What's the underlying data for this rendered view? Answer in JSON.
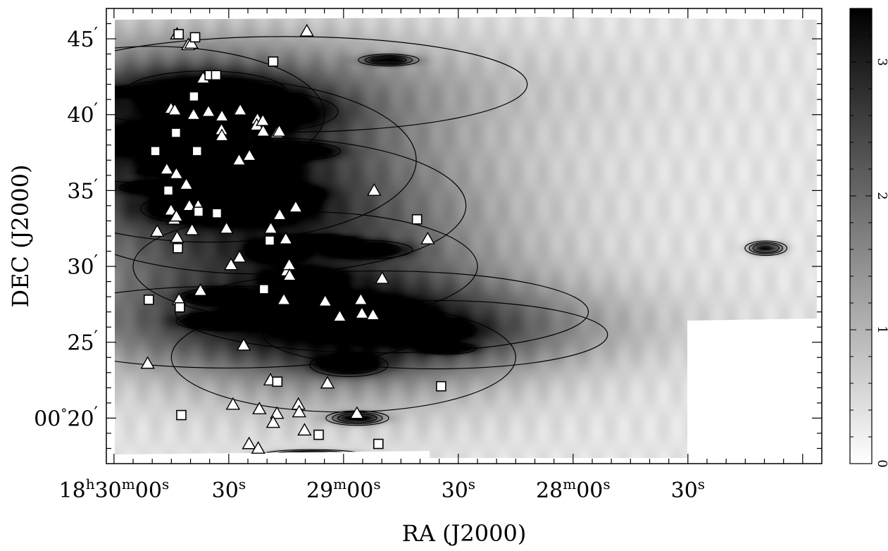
{
  "chart_data": {
    "type": "heatmap",
    "xlabel": "RA (J2000)",
    "ylabel": "DEC (J2000)",
    "x_ticks": [
      {
        "ra_sec": 1800,
        "label_main": "18",
        "sup1": "h",
        "mid": "30",
        "sup2": "m",
        "end": "00",
        "sup3": "s"
      },
      {
        "ra_sec": 1770,
        "label_main": "",
        "sup1": "",
        "mid": "",
        "sup2": "",
        "end": "30",
        "sup3": "s"
      },
      {
        "ra_sec": 1740,
        "label_main": "",
        "sup1": "",
        "mid": "29",
        "sup2": "m",
        "end": "00",
        "sup3": "s"
      },
      {
        "ra_sec": 1710,
        "label_main": "",
        "sup1": "",
        "mid": "",
        "sup2": "",
        "end": "30",
        "sup3": "s"
      },
      {
        "ra_sec": 1680,
        "label_main": "",
        "sup1": "",
        "mid": "28",
        "sup2": "m",
        "end": "00",
        "sup3": "s"
      },
      {
        "ra_sec": 1650,
        "label_main": "",
        "sup1": "",
        "mid": "",
        "sup2": "",
        "end": "30",
        "sup3": "s"
      }
    ],
    "y_ticks": [
      {
        "dec_arcmin": 45,
        "label": "45",
        "prime": "′"
      },
      {
        "dec_arcmin": 40,
        "label": "40",
        "prime": "′"
      },
      {
        "dec_arcmin": 35,
        "label": "35",
        "prime": "′"
      },
      {
        "dec_arcmin": 30,
        "label": "30",
        "prime": "′"
      },
      {
        "dec_arcmin": 25,
        "label": "25",
        "prime": "′"
      },
      {
        "dec_arcmin": 20,
        "label": "00°20",
        "prime": "′"
      }
    ],
    "xlim_ra_sec": [
      1802,
      1615
    ],
    "ylim_dec_arcmin": [
      17,
      47
    ],
    "colorbar": {
      "min": 0,
      "max": 3.4,
      "ticks": [
        "0",
        "1",
        "2",
        "3"
      ],
      "colors": [
        "#ffffff",
        "#000000"
      ]
    },
    "clumps": [
      {
        "ra": 1797.0,
        "dec": 41.5,
        "v": 3.1,
        "sx": 0.012,
        "sy": 0.25
      },
      {
        "ra": 1790.6,
        "dec": 38.3,
        "v": 1.9,
        "sx": 0.014,
        "sy": 0.9
      },
      {
        "ra": 1785.7,
        "dec": 35.2,
        "v": 2.6,
        "sx": 0.01,
        "sy": 0.4
      },
      {
        "ra": 1781.5,
        "dec": 36.2,
        "v": 3.4,
        "sx": 0.008,
        "sy": 0.2
      },
      {
        "ra": 1778.6,
        "dec": 36.7,
        "v": 2.9,
        "sx": 0.01,
        "sy": 0.35
      },
      {
        "ra": 1777.1,
        "dec": 33.8,
        "v": 1.8,
        "sx": 0.014,
        "sy": 0.9
      },
      {
        "ra": 1771.8,
        "dec": 28.0,
        "v": 3.0,
        "sx": 0.008,
        "sy": 0.45
      },
      {
        "ra": 1773.2,
        "dec": 26.4,
        "v": 2.8,
        "sx": 0.008,
        "sy": 0.45
      },
      {
        "ra": 1766.5,
        "dec": 36.3,
        "v": 2.0,
        "sx": 0.012,
        "sy": 1.0
      },
      {
        "ra": 1761.6,
        "dec": 34.0,
        "v": 2.1,
        "sx": 0.012,
        "sy": 1.0
      },
      {
        "ra": 1757.4,
        "dec": 31.0,
        "v": 3.2,
        "sx": 0.006,
        "sy": 0.6
      },
      {
        "ra": 1754.8,
        "dec": 34.8,
        "v": 2.4,
        "sx": 0.008,
        "sy": 0.5
      },
      {
        "ra": 1753.2,
        "dec": 37.6,
        "v": 2.3,
        "sx": 0.01,
        "sy": 0.5
      },
      {
        "ra": 1750.4,
        "dec": 29.3,
        "v": 2.9,
        "sx": 0.008,
        "sy": 0.5
      },
      {
        "ra": 1747.1,
        "dec": 31.7,
        "v": 3.3,
        "sx": 0.008,
        "sy": 0.3
      },
      {
        "ra": 1744.4,
        "dec": 27.6,
        "v": 2.4,
        "sx": 0.01,
        "sy": 0.6
      },
      {
        "ra": 1741.4,
        "dec": 26.5,
        "v": 3.1,
        "sx": 0.006,
        "sy": 0.4
      },
      {
        "ra": 1738.6,
        "dec": 23.5,
        "v": 2.5,
        "sx": 0.008,
        "sy": 0.6
      },
      {
        "ra": 1736.4,
        "dec": 20.0,
        "v": 3.2,
        "sx": 0.006,
        "sy": 0.35
      },
      {
        "ra": 1734.4,
        "dec": 31.1,
        "v": 2.3,
        "sx": 0.01,
        "sy": 0.5
      },
      {
        "ra": 1731.8,
        "dec": 27.2,
        "v": 2.3,
        "sx": 0.01,
        "sy": 0.6
      },
      {
        "ra": 1726.4,
        "dec": 26.1,
        "v": 3.0,
        "sx": 0.007,
        "sy": 0.3
      },
      {
        "ra": 1719.5,
        "dec": 25.8,
        "v": 2.0,
        "sx": 0.012,
        "sy": 0.7
      },
      {
        "ra": 1713.2,
        "dec": 24.6,
        "v": 2.8,
        "sx": 0.006,
        "sy": 0.3
      },
      {
        "ra": 1728.2,
        "dec": 43.6,
        "v": 2.8,
        "sx": 0.006,
        "sy": 0.3
      },
      {
        "ra": 1748.2,
        "dec": 17.6,
        "v": 2.6,
        "sx": 0.01,
        "sy": 0.25
      },
      {
        "ra": 1629.6,
        "dec": 31.2,
        "v": 3.2,
        "sx": 0.004,
        "sy": 0.35
      },
      {
        "ra": 1761.0,
        "dec": 40.2,
        "v": 1.6,
        "sx": 0.018,
        "sy": 1.2
      },
      {
        "ra": 1776.0,
        "dec": 41.5,
        "v": 1.5,
        "sx": 0.02,
        "sy": 1.3
      }
    ],
    "triangles": [
      {
        "ra": 1783.5,
        "dec": 45.3
      },
      {
        "ra": 1780.6,
        "dec": 44.6
      },
      {
        "ra": 1779.8,
        "dec": 44.7
      },
      {
        "ra": 1776.7,
        "dec": 42.4
      },
      {
        "ra": 1785.1,
        "dec": 40.4
      },
      {
        "ra": 1784.1,
        "dec": 40.3
      },
      {
        "ra": 1779.2,
        "dec": 40.0
      },
      {
        "ra": 1775.3,
        "dec": 40.2
      },
      {
        "ra": 1771.8,
        "dec": 39.9
      },
      {
        "ra": 1771.9,
        "dec": 39.0
      },
      {
        "ra": 1771.8,
        "dec": 38.6
      },
      {
        "ra": 1767.3,
        "dec": 40.3
      },
      {
        "ra": 1767.0,
        "dec": 40.3
      },
      {
        "ra": 1762.5,
        "dec": 39.7
      },
      {
        "ra": 1762.7,
        "dec": 39.3
      },
      {
        "ra": 1761.0,
        "dec": 38.9
      },
      {
        "ra": 1757.4,
        "dec": 38.8
      },
      {
        "ra": 1756.8,
        "dec": 38.9
      },
      {
        "ra": 1749.6,
        "dec": 45.5
      },
      {
        "ra": 1786.2,
        "dec": 36.4
      },
      {
        "ra": 1783.7,
        "dec": 36.1
      },
      {
        "ra": 1781.1,
        "dec": 35.4
      },
      {
        "ra": 1767.3,
        "dec": 37.0
      },
      {
        "ra": 1764.6,
        "dec": 37.3
      },
      {
        "ra": 1785.1,
        "dec": 33.7
      },
      {
        "ra": 1784.3,
        "dec": 33.1
      },
      {
        "ra": 1783.7,
        "dec": 33.3
      },
      {
        "ra": 1780.3,
        "dec": 34.0
      },
      {
        "ra": 1778.0,
        "dec": 34.0
      },
      {
        "ra": 1788.7,
        "dec": 32.3
      },
      {
        "ra": 1783.5,
        "dec": 31.9
      },
      {
        "ra": 1779.6,
        "dec": 32.4
      },
      {
        "ra": 1770.6,
        "dec": 32.5
      },
      {
        "ra": 1769.4,
        "dec": 30.1
      },
      {
        "ra": 1767.2,
        "dec": 30.6
      },
      {
        "ra": 1756.7,
        "dec": 33.4
      },
      {
        "ra": 1752.5,
        "dec": 33.9
      },
      {
        "ra": 1755.1,
        "dec": 31.8
      },
      {
        "ra": 1754.8,
        "dec": 29.7
      },
      {
        "ra": 1754.2,
        "dec": 30.1
      },
      {
        "ra": 1754.1,
        "dec": 29.4
      },
      {
        "ra": 1755.6,
        "dec": 27.8
      },
      {
        "ra": 1777.4,
        "dec": 28.4
      },
      {
        "ra": 1783.0,
        "dec": 27.8
      },
      {
        "ra": 1791.2,
        "dec": 23.6
      },
      {
        "ra": 1766.1,
        "dec": 24.8
      },
      {
        "ra": 1759.1,
        "dec": 22.5
      },
      {
        "ra": 1762.0,
        "dec": 20.6
      },
      {
        "ra": 1757.4,
        "dec": 20.3
      },
      {
        "ra": 1758.4,
        "dec": 19.7
      },
      {
        "ra": 1751.8,
        "dec": 20.9
      },
      {
        "ra": 1751.6,
        "dec": 20.4
      },
      {
        "ra": 1750.2,
        "dec": 19.2
      },
      {
        "ra": 1768.9,
        "dec": 20.9
      },
      {
        "ra": 1764.7,
        "dec": 18.3
      },
      {
        "ra": 1762.3,
        "dec": 18.0
      },
      {
        "ra": 1744.2,
        "dec": 22.3
      },
      {
        "ra": 1744.8,
        "dec": 27.7
      },
      {
        "ra": 1741.0,
        "dec": 26.7
      },
      {
        "ra": 1735.5,
        "dec": 27.8
      },
      {
        "ra": 1735.2,
        "dec": 26.9
      },
      {
        "ra": 1732.3,
        "dec": 26.8
      },
      {
        "ra": 1729.9,
        "dec": 29.2
      },
      {
        "ra": 1736.5,
        "dec": 20.3
      },
      {
        "ra": 1732.0,
        "dec": 35.0
      },
      {
        "ra": 1718.0,
        "dec": 31.8
      },
      {
        "ra": 1761.1,
        "dec": 39.6
      },
      {
        "ra": 1759.0,
        "dec": 32.5
      }
    ],
    "squares": [
      {
        "ra": 1783.1,
        "dec": 45.3
      },
      {
        "ra": 1778.8,
        "dec": 45.1
      },
      {
        "ra": 1775.0,
        "dec": 42.6
      },
      {
        "ra": 1773.3,
        "dec": 42.6
      },
      {
        "ra": 1758.4,
        "dec": 43.5
      },
      {
        "ra": 1779.1,
        "dec": 41.2
      },
      {
        "ra": 1783.8,
        "dec": 38.8
      },
      {
        "ra": 1789.2,
        "dec": 37.6
      },
      {
        "ra": 1778.3,
        "dec": 37.6
      },
      {
        "ra": 1785.8,
        "dec": 35.0
      },
      {
        "ra": 1777.9,
        "dec": 33.6
      },
      {
        "ra": 1773.1,
        "dec": 33.5
      },
      {
        "ra": 1759.3,
        "dec": 31.7
      },
      {
        "ra": 1783.3,
        "dec": 31.2
      },
      {
        "ra": 1760.8,
        "dec": 28.5
      },
      {
        "ra": 1790.9,
        "dec": 27.8
      },
      {
        "ra": 1782.8,
        "dec": 27.3
      },
      {
        "ra": 1757.3,
        "dec": 22.4
      },
      {
        "ra": 1782.4,
        "dec": 20.2
      },
      {
        "ra": 1746.5,
        "dec": 18.9
      },
      {
        "ra": 1730.9,
        "dec": 18.3
      },
      {
        "ra": 1714.5,
        "dec": 22.1
      },
      {
        "ra": 1720.8,
        "dec": 33.1
      }
    ]
  }
}
